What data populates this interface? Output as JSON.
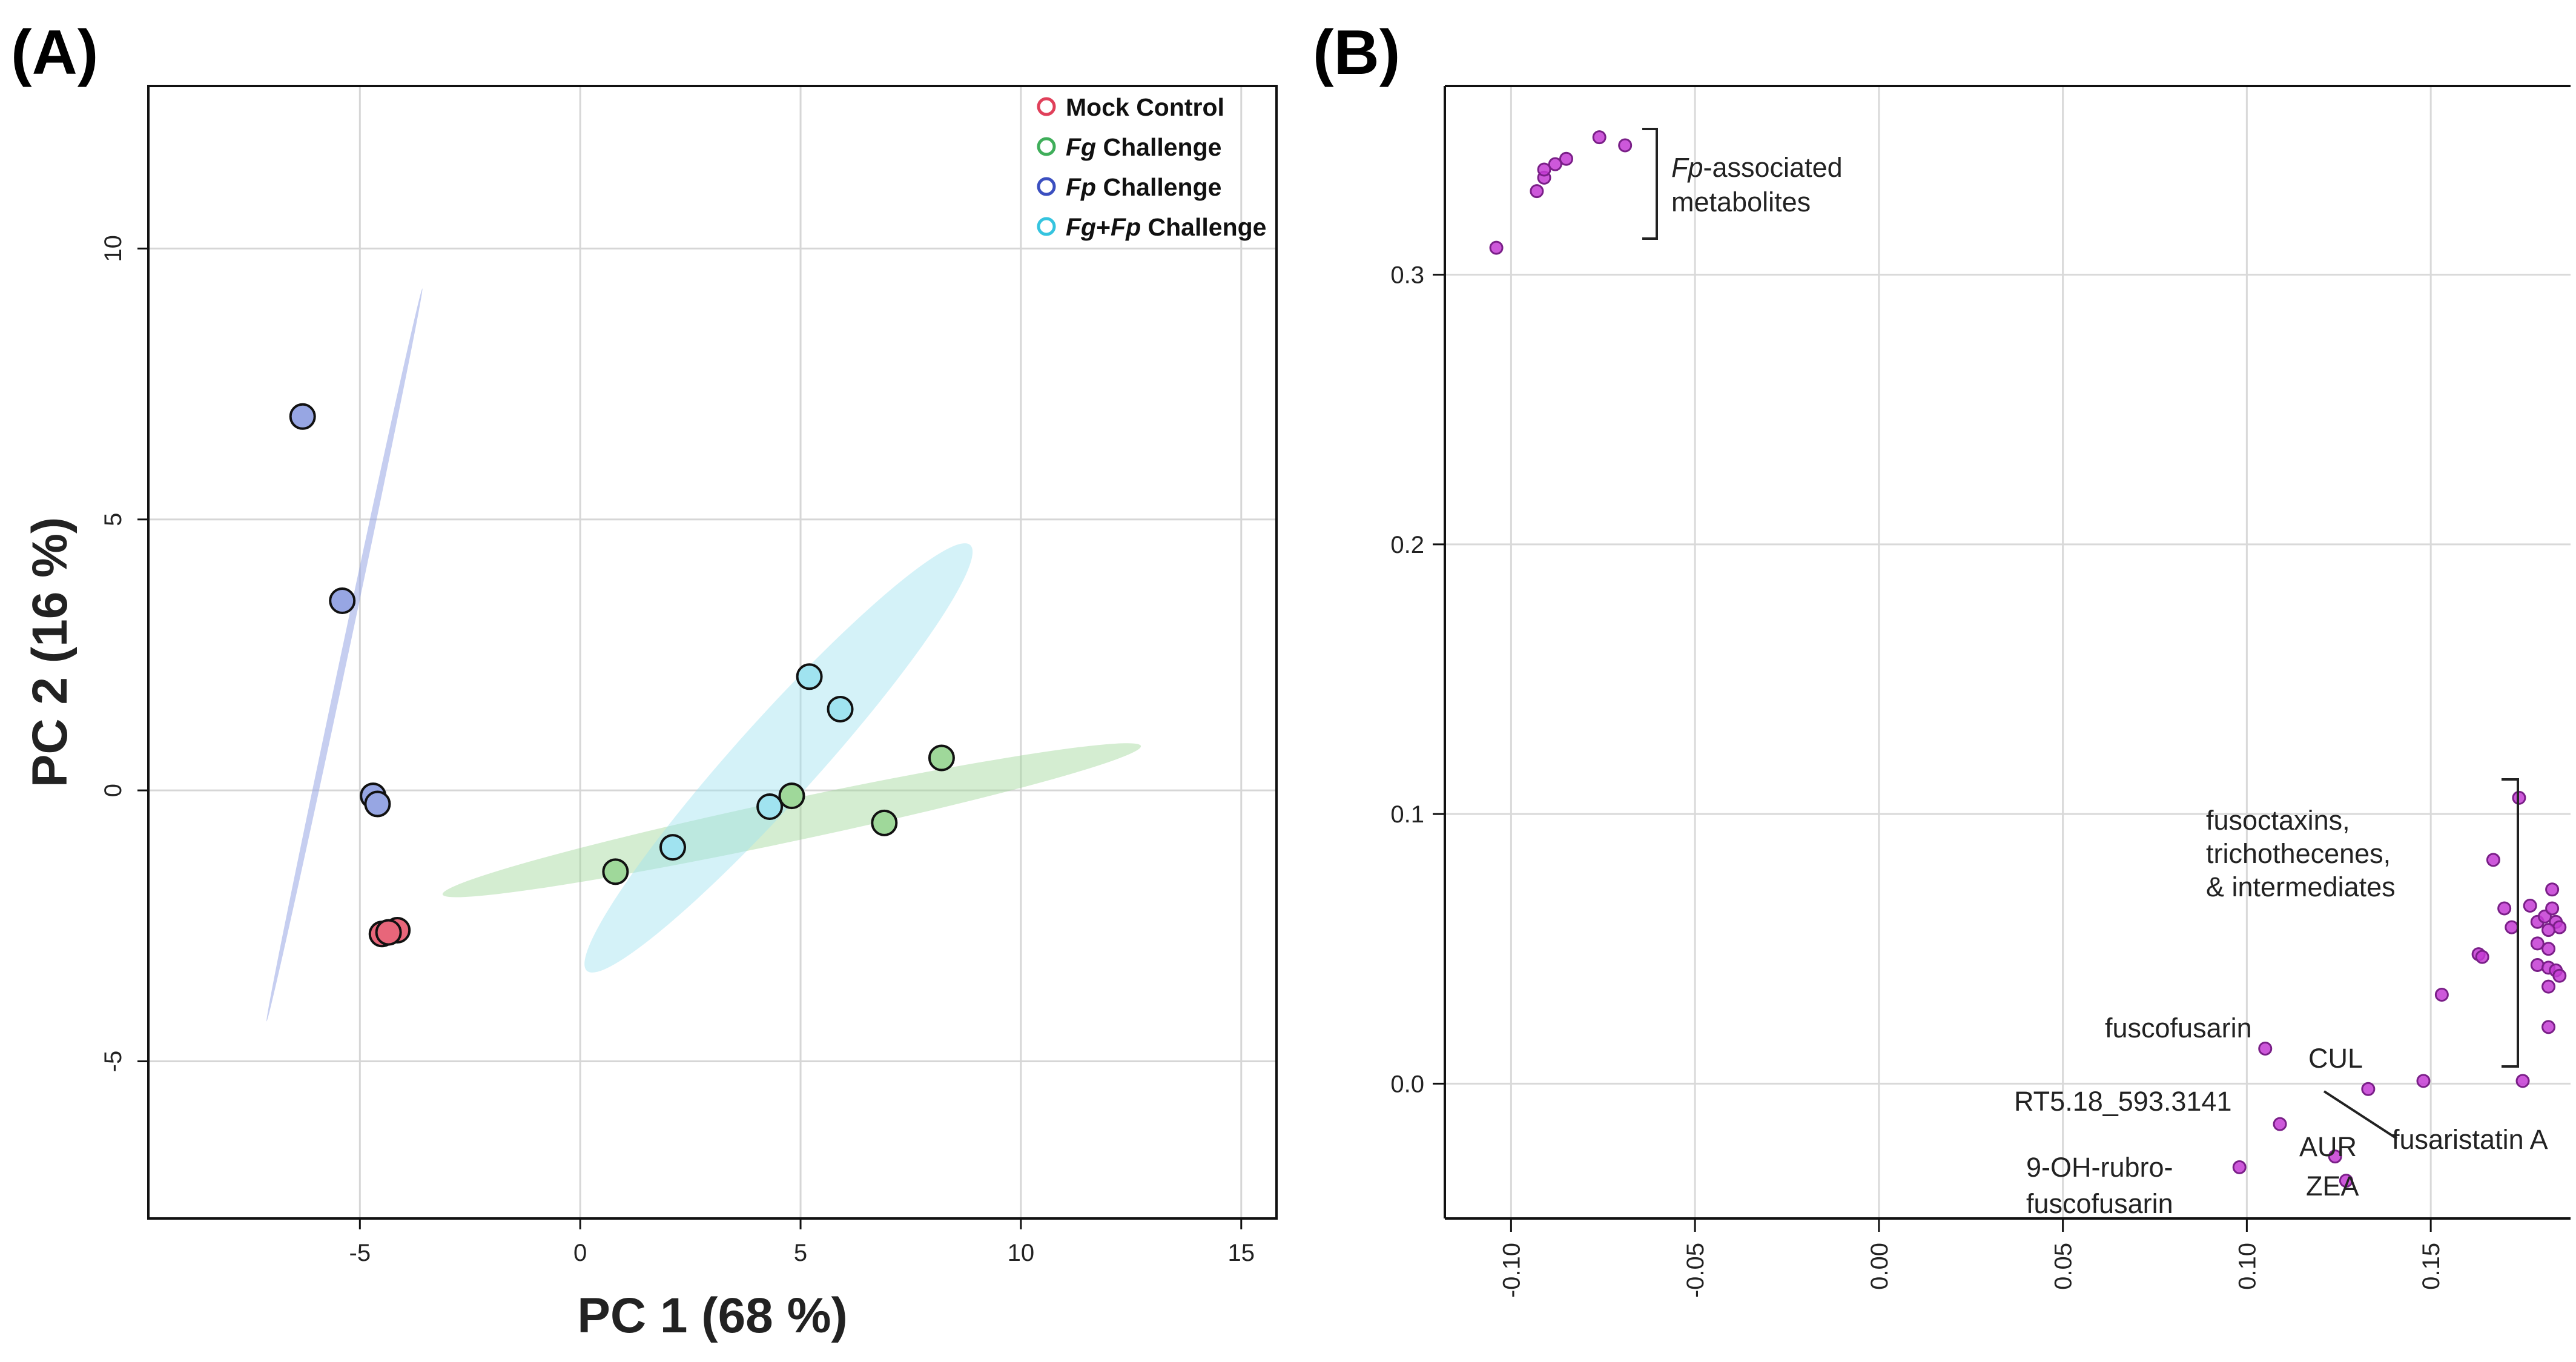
{
  "panel_labels": {
    "a": "(A)",
    "b": "(B)"
  },
  "chart_data": [
    {
      "type": "scatter",
      "panel": "(A)",
      "xlabel": "PC 1 (68 %)",
      "ylabel": "PC 2 (16 %)",
      "xlim": [
        -9.8,
        15.8
      ],
      "ylim": [
        -7.9,
        13.0
      ],
      "xticks": [
        -5,
        0,
        5,
        10,
        15
      ],
      "yticks": [
        -5,
        0,
        5,
        10
      ],
      "grid": true,
      "legend_position": "top-right",
      "series": [
        {
          "name": "Mock Control",
          "name_parts": [
            {
              "t": "Mock Control",
              "i": false
            }
          ],
          "color": "#e0405a",
          "fill": "#e8667a",
          "points": [
            [
              -4.5,
              -2.65
            ],
            [
              -4.15,
              -2.58
            ],
            [
              -4.35,
              -2.62
            ]
          ]
        },
        {
          "name": "Fg Challenge",
          "name_parts": [
            {
              "t": "Fg",
              "i": true
            },
            {
              "t": " Challenge",
              "i": false
            }
          ],
          "color": "#3fae5a",
          "fill": "#9fd89a",
          "points": [
            [
              0.8,
              -1.5
            ],
            [
              4.8,
              -0.1
            ],
            [
              6.9,
              -0.6
            ],
            [
              8.2,
              0.6
            ]
          ],
          "ellipse": {
            "cx": 4.8,
            "cy": -0.55,
            "rx": 16.2,
            "ry": 0.95,
            "angle": 12.0
          }
        },
        {
          "name": "Fp Challenge",
          "name_parts": [
            {
              "t": "Fp",
              "i": true
            },
            {
              "t": " Challenge",
              "i": false
            }
          ],
          "color": "#3b4fc0",
          "fill": "#97a6e3",
          "points": [
            [
              -6.3,
              6.9
            ],
            [
              -5.4,
              3.5
            ],
            [
              -4.7,
              -0.1
            ],
            [
              -4.6,
              -0.25
            ]
          ],
          "ellipse": {
            "cx": -5.35,
            "cy": 2.5,
            "rx": 17.0,
            "ry": 0.16,
            "angle": 78.0
          }
        },
        {
          "name": "Fg+Fp Challenge",
          "name_parts": [
            {
              "t": "Fg",
              "i": true
            },
            {
              "t": "+",
              "i": false
            },
            {
              "t": "Fp",
              "i": true
            },
            {
              "t": " Challenge",
              "i": false
            }
          ],
          "color": "#35c4df",
          "fill": "#a0e3f0",
          "points": [
            [
              2.1,
              -1.05
            ],
            [
              4.3,
              -0.3
            ],
            [
              5.2,
              2.1
            ],
            [
              5.9,
              1.5
            ]
          ],
          "ellipse": {
            "cx": 4.5,
            "cy": 0.6,
            "rx": 13.0,
            "ry": 1.85,
            "angle": 48.0
          }
        }
      ]
    },
    {
      "type": "scatter",
      "panel": "(B)",
      "xlabel": "",
      "ylabel": "",
      "xlim": [
        -0.118,
        0.188
      ],
      "ylim": [
        -0.05,
        0.37
      ],
      "xticks": [
        "-0.10",
        "-0.05",
        "0.00",
        "0.05",
        "0.10",
        "0.15"
      ],
      "yticks": [
        "0.0",
        "0.1",
        "0.2",
        "0.3"
      ],
      "grid": true,
      "marker_color": "#c43bd4",
      "points": [
        [
          -0.104,
          0.31
        ],
        [
          -0.093,
          0.331
        ],
        [
          -0.091,
          0.336
        ],
        [
          -0.091,
          0.339
        ],
        [
          -0.088,
          0.341
        ],
        [
          -0.085,
          0.343
        ],
        [
          -0.076,
          0.351
        ],
        [
          -0.069,
          0.348
        ],
        [
          0.174,
          0.106
        ],
        [
          0.167,
          0.083
        ],
        [
          0.17,
          0.065
        ],
        [
          0.172,
          0.058
        ],
        [
          0.177,
          0.066
        ],
        [
          0.179,
          0.06
        ],
        [
          0.181,
          0.062
        ],
        [
          0.183,
          0.072
        ],
        [
          0.183,
          0.065
        ],
        [
          0.184,
          0.06
        ],
        [
          0.185,
          0.058
        ],
        [
          0.182,
          0.057
        ],
        [
          0.179,
          0.052
        ],
        [
          0.182,
          0.05
        ],
        [
          0.163,
          0.048
        ],
        [
          0.164,
          0.047
        ],
        [
          0.179,
          0.044
        ],
        [
          0.182,
          0.043
        ],
        [
          0.184,
          0.042
        ],
        [
          0.185,
          0.04
        ],
        [
          0.182,
          0.036
        ],
        [
          0.153,
          0.033
        ],
        [
          0.182,
          0.021
        ],
        [
          0.175,
          0.001
        ],
        [
          0.105,
          0.013
        ],
        [
          0.148,
          0.001
        ],
        [
          0.133,
          -0.002
        ],
        [
          0.109,
          -0.015
        ],
        [
          0.098,
          -0.031
        ],
        [
          0.124,
          -0.027
        ],
        [
          0.127,
          -0.036
        ]
      ],
      "annotations": {
        "fp_assoc_italic": "Fp",
        "fp_assoc_rest": "-associated",
        "fp_assoc_line2": "metabolites",
        "fusoc_line1": "fusoctaxins,",
        "fusoc_line2": "trichothecenes,",
        "fusoc_line3": "& intermediates",
        "fuscofusarin": "fuscofusarin",
        "cul": "CUL",
        "rt": "RT5.18_593.3141",
        "fusaristatin": "fusaristatin A",
        "aur": "AUR",
        "zea": "ZEA",
        "ohrubro_line1": "9-OH-rubro-",
        "ohrubro_line2": "fuscofusarin"
      }
    }
  ]
}
